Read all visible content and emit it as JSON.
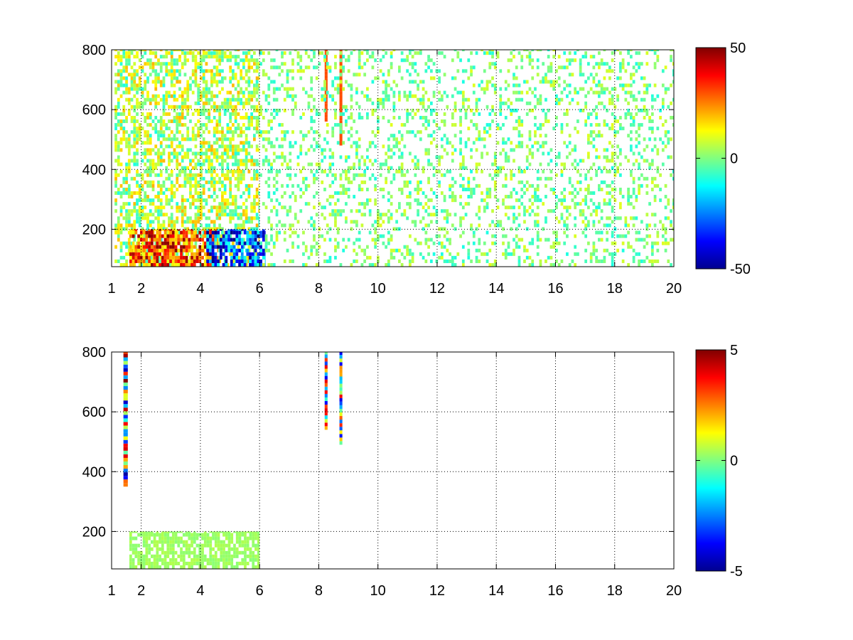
{
  "chart_data": [
    {
      "type": "heatmap",
      "title": "",
      "xlabel": "",
      "ylabel": "",
      "xlim": [
        1,
        20
      ],
      "ylim": [
        75,
        800
      ],
      "x_ticks": [
        1,
        2,
        4,
        6,
        8,
        10,
        12,
        14,
        16,
        18,
        20
      ],
      "x_tick_labels": [
        "1",
        "2",
        "4",
        "6",
        "8",
        "10",
        "12",
        "14",
        "16",
        "18",
        "20"
      ],
      "y_ticks": [
        200,
        400,
        600,
        800
      ],
      "y_tick_labels": [
        "200",
        "400",
        "600",
        "800"
      ],
      "grid": true,
      "colormap": "jet",
      "clim": [
        -50,
        50
      ],
      "colorbar_ticks": [
        -50,
        0,
        50
      ],
      "colorbar_tick_labels": [
        "-50",
        "0",
        "50"
      ],
      "features": [
        {
          "x": [
            1.1,
            6.0
          ],
          "y": [
            75,
            800
          ],
          "value_range": [
            -10,
            20
          ],
          "density": 0.55,
          "note": "dense vertical streaks"
        },
        {
          "x": [
            1.6,
            4.6
          ],
          "y": [
            75,
            200
          ],
          "value_range": [
            10,
            50
          ],
          "density": 0.8
        },
        {
          "x": [
            4.2,
            6.2
          ],
          "y": [
            75,
            200
          ],
          "value_range": [
            -50,
            -10
          ],
          "density": 0.7
        },
        {
          "x": [
            8.2,
            8.25
          ],
          "y": [
            560,
            800
          ],
          "value": 30
        },
        {
          "x": [
            8.7,
            8.75
          ],
          "y": [
            480,
            800
          ],
          "value": 30
        },
        {
          "x": [
            6.0,
            20.0
          ],
          "y": [
            75,
            800
          ],
          "value_range": [
            -10,
            10
          ],
          "density": 0.25
        }
      ]
    },
    {
      "type": "heatmap",
      "title": "",
      "xlabel": "",
      "ylabel": "",
      "xlim": [
        1,
        20
      ],
      "ylim": [
        75,
        800
      ],
      "x_ticks": [
        1,
        2,
        4,
        6,
        8,
        10,
        12,
        14,
        16,
        18,
        20
      ],
      "x_tick_labels": [
        "1",
        "2",
        "4",
        "6",
        "8",
        "10",
        "12",
        "14",
        "16",
        "18",
        "20"
      ],
      "y_ticks": [
        200,
        400,
        600,
        800
      ],
      "y_tick_labels": [
        "200",
        "400",
        "600",
        "800"
      ],
      "grid": true,
      "colormap": "jet",
      "clim": [
        -5,
        5
      ],
      "colorbar_ticks": [
        -5,
        0,
        5
      ],
      "colorbar_tick_labels": [
        "-5",
        "0",
        "5"
      ],
      "features": [
        {
          "x": [
            1.6,
            6.0
          ],
          "y": [
            75,
            200
          ],
          "value": 0.3,
          "density": 0.75
        },
        {
          "x": [
            8.2,
            8.25
          ],
          "y": [
            540,
            800
          ],
          "value_range": [
            -4,
            4
          ]
        },
        {
          "x": [
            8.7,
            8.75
          ],
          "y": [
            490,
            800
          ],
          "value_range": [
            -4,
            4
          ]
        },
        {
          "x": [
            1.4,
            1.5
          ],
          "y": [
            350,
            800
          ],
          "value_range": [
            -5,
            5
          ]
        }
      ]
    }
  ]
}
